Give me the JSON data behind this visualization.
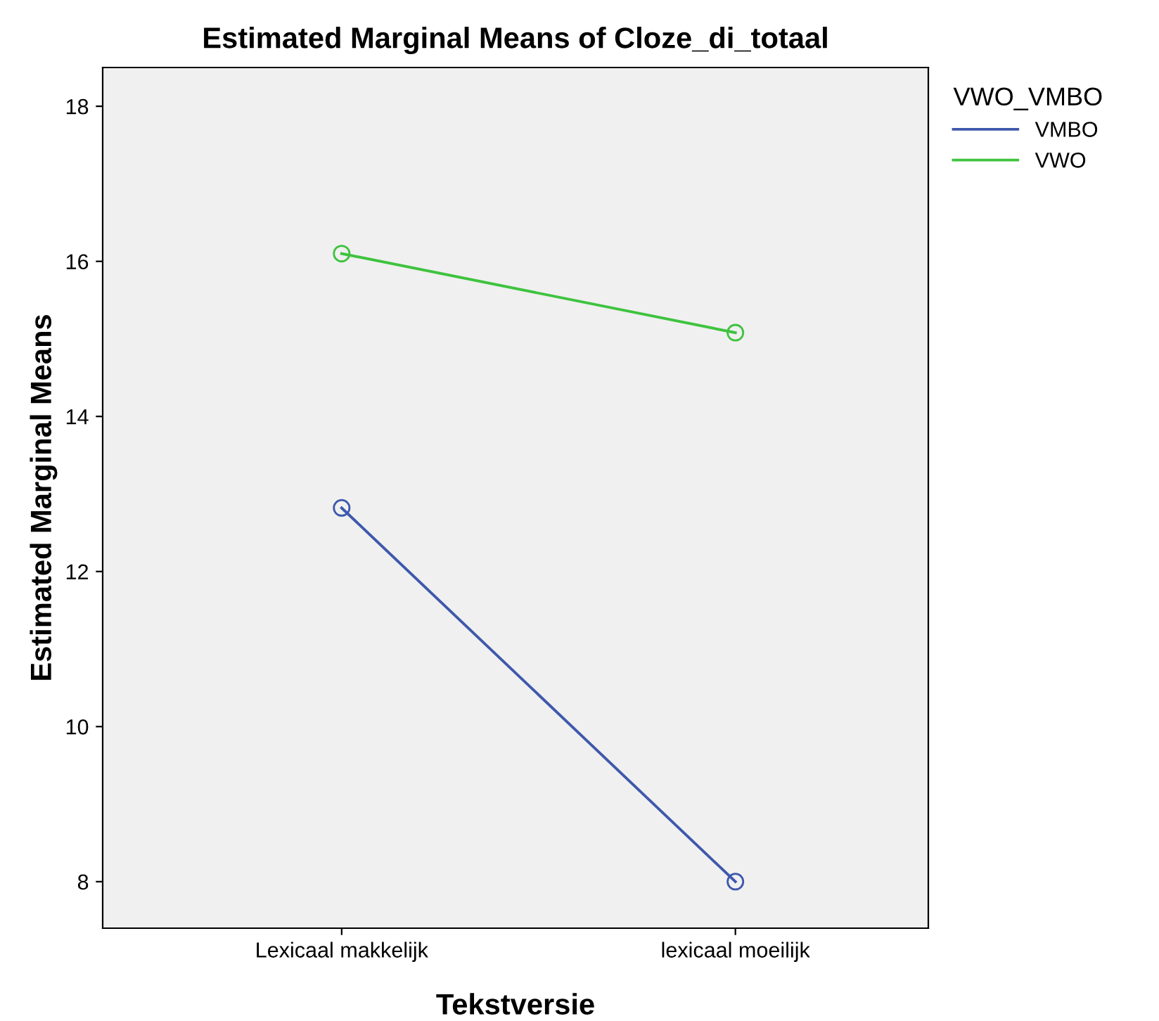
{
  "chart_data": {
    "type": "line",
    "title": "Estimated Marginal Means of Cloze_di_totaal",
    "xlabel": "Tekstversie",
    "ylabel": "Estimated Marginal Means",
    "legend_title": "VWO_VMBO",
    "categories": [
      "Lexicaal makkelijk",
      "lexicaal moeilijk"
    ],
    "series": [
      {
        "name": "VMBO",
        "color": "#3e58ac",
        "values": [
          12.82,
          8.0
        ]
      },
      {
        "name": "VWO",
        "color": "#3ec33e",
        "values": [
          16.1,
          15.08
        ]
      }
    ],
    "ylim": [
      7.4,
      18.5
    ],
    "yticks": [
      8,
      10,
      12,
      14,
      16,
      18
    ],
    "marker": "circle",
    "line_style": "solid",
    "grid": false,
    "legend": "top right"
  }
}
